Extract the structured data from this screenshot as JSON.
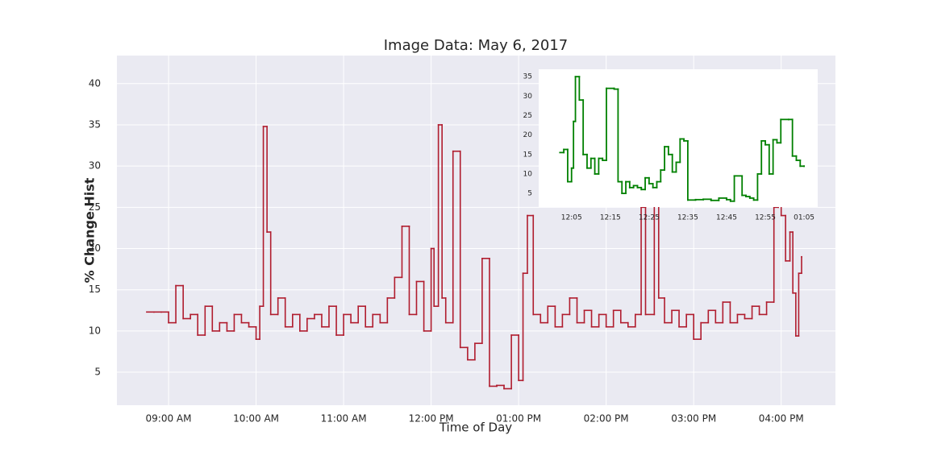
{
  "chart_data": [
    {
      "type": "line",
      "drawstyle": "steps",
      "title": "Image Data: May 6, 2017",
      "xlabel": "Time of Day",
      "ylabel": "% Change Hist",
      "grid": true,
      "background": "#eaeaf2",
      "xlim": [
        8.41,
        16.62
      ],
      "ylim": [
        1.0,
        43.4
      ],
      "xticks": [
        {
          "value": 9,
          "label": "09:00 AM"
        },
        {
          "value": 10,
          "label": "10:00 AM"
        },
        {
          "value": 11,
          "label": "11:00 AM"
        },
        {
          "value": 12,
          "label": "12:00 PM"
        },
        {
          "value": 13,
          "label": "01:00 PM"
        },
        {
          "value": 14,
          "label": "02:00 PM"
        },
        {
          "value": 15,
          "label": "03:00 PM"
        },
        {
          "value": 16,
          "label": "04:00 PM"
        }
      ],
      "yticks": [
        5,
        10,
        15,
        20,
        25,
        30,
        35,
        40
      ],
      "x": [
        8.75,
        8.833,
        8.917,
        9.0,
        9.083,
        9.167,
        9.25,
        9.333,
        9.417,
        9.5,
        9.583,
        9.667,
        9.75,
        9.833,
        9.917,
        10.0,
        10.042,
        10.083,
        10.125,
        10.167,
        10.25,
        10.333,
        10.417,
        10.5,
        10.583,
        10.667,
        10.75,
        10.833,
        10.917,
        11.0,
        11.083,
        11.167,
        11.25,
        11.333,
        11.417,
        11.5,
        11.583,
        11.667,
        11.75,
        11.833,
        11.917,
        12.0,
        12.033,
        12.083,
        12.125,
        12.167,
        12.25,
        12.333,
        12.417,
        12.5,
        12.583,
        12.667,
        12.75,
        12.833,
        12.917,
        13.0,
        13.05,
        13.1,
        13.167,
        13.25,
        13.333,
        13.417,
        13.5,
        13.583,
        13.667,
        13.75,
        13.833,
        13.917,
        14.0,
        14.083,
        14.167,
        14.25,
        14.333,
        14.4,
        14.45,
        14.55,
        14.6,
        14.667,
        14.75,
        14.833,
        14.917,
        15.0,
        15.083,
        15.167,
        15.25,
        15.333,
        15.417,
        15.5,
        15.583,
        15.667,
        15.75,
        15.833,
        15.917,
        15.967,
        16.0,
        16.05,
        16.1,
        16.133,
        16.167,
        16.2,
        16.233
      ],
      "series": [
        {
          "color": "#b01c2e",
          "values": [
            12.3,
            12.3,
            12.3,
            11,
            15.5,
            11.5,
            12,
            9.5,
            13,
            10,
            11,
            10,
            12,
            11,
            10.5,
            9,
            13,
            34.8,
            22,
            12,
            14,
            10.5,
            12,
            10,
            11.5,
            12,
            10.5,
            13,
            9.5,
            12,
            11,
            13,
            10.5,
            12,
            11,
            14,
            16.5,
            22.7,
            12,
            16,
            10,
            20,
            13,
            35,
            14,
            11,
            31.8,
            8,
            6.5,
            8.5,
            18.8,
            3.3,
            3.4,
            3,
            9.5,
            4,
            17,
            24,
            12,
            11,
            13,
            10.5,
            12,
            14,
            11,
            12.5,
            10.5,
            12,
            10.5,
            12.5,
            11,
            10.5,
            12,
            25,
            12,
            28,
            14,
            11,
            12.5,
            10.5,
            12,
            9,
            11,
            12.5,
            11,
            13.5,
            11,
            12,
            11.5,
            13,
            12,
            13.5,
            25,
            30,
            24,
            18.5,
            22,
            14.6,
            9.4,
            17,
            19
          ]
        }
      ]
    },
    {
      "type": "line",
      "drawstyle": "steps",
      "background": "#ffffff",
      "grid": false,
      "xlim": [
        11.942,
        13.142
      ],
      "ylim": [
        1.5,
        36.9
      ],
      "xticks": [
        {
          "value": 12.0833,
          "label": "12:05"
        },
        {
          "value": 12.25,
          "label": "12:15"
        },
        {
          "value": 12.4167,
          "label": "12:25"
        },
        {
          "value": 12.5833,
          "label": "12:35"
        },
        {
          "value": 12.75,
          "label": "12:45"
        },
        {
          "value": 12.9167,
          "label": "12:55"
        },
        {
          "value": 13.0833,
          "label": "01:05"
        }
      ],
      "yticks": [
        5,
        10,
        15,
        20,
        25,
        30,
        35
      ],
      "x": [
        12.0333,
        12.05,
        12.0667,
        12.0833,
        12.0917,
        12.1,
        12.1167,
        12.1333,
        12.15,
        12.1667,
        12.1833,
        12.2,
        12.2167,
        12.2333,
        12.2667,
        12.2833,
        12.3,
        12.3167,
        12.3333,
        12.35,
        12.3667,
        12.3833,
        12.4,
        12.4167,
        12.4333,
        12.45,
        12.4667,
        12.4833,
        12.5,
        12.5167,
        12.5333,
        12.55,
        12.5667,
        12.5833,
        12.6167,
        12.65,
        12.6833,
        12.7167,
        12.75,
        12.7667,
        12.7833,
        12.8167,
        12.8333,
        12.85,
        12.8667,
        12.8833,
        12.9,
        12.9167,
        12.9333,
        12.95,
        12.9667,
        12.9833,
        13.0167,
        13.0333,
        13.05,
        13.0667,
        13.0833
      ],
      "series": [
        {
          "color": "#008000",
          "values": [
            15.5,
            16.3,
            8,
            11.5,
            23.5,
            35,
            29,
            15,
            11.5,
            14,
            10,
            14,
            13.5,
            32,
            31.8,
            8,
            5,
            8,
            6.5,
            7,
            6.5,
            6,
            9,
            7.5,
            6.5,
            8,
            11,
            17,
            15,
            10.5,
            13,
            19,
            18.5,
            3.3,
            3.4,
            3.5,
            3.2,
            3.8,
            3.4,
            3,
            9.5,
            4.5,
            4.2,
            3.8,
            3.3,
            10,
            18.5,
            17.5,
            10,
            18.8,
            18,
            24,
            24,
            14.6,
            13.5,
            12,
            12
          ]
        }
      ]
    }
  ]
}
